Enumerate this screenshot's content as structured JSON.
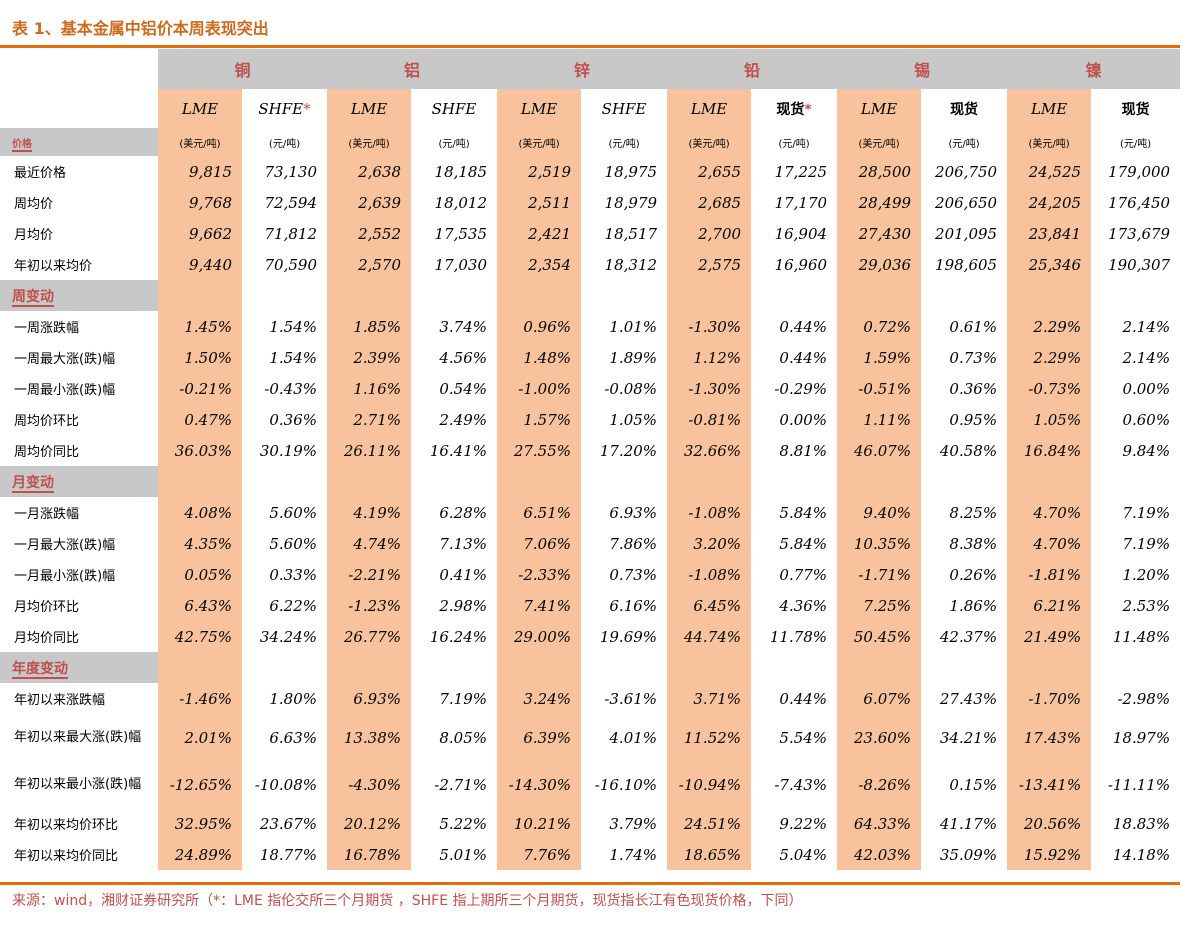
{
  "title": "表 1、基本金属中铝价本周表现突出",
  "source": "来源：wind，湘财证券研究所（*：LME 指伦交所三个月期货 ，SHFE 指上期所三个月期货，现货指长江有色现货价格，下同）",
  "colors": {
    "accent": "#e36c09",
    "header_gray": "#c8c8c8",
    "lme_orange": "#f8c29c",
    "label_red": "#c0504d"
  },
  "metals": [
    "铜",
    "铝",
    "锌",
    "铅",
    "锡",
    "镍"
  ],
  "subheaders": [
    {
      "label": "LME",
      "star": ""
    },
    {
      "label": "SHFE",
      "star": "*"
    },
    {
      "label": "LME",
      "star": ""
    },
    {
      "label": "SHFE",
      "star": ""
    },
    {
      "label": "LME",
      "star": ""
    },
    {
      "label": "SHFE",
      "star": ""
    },
    {
      "label": "LME",
      "star": ""
    },
    {
      "label": "现货",
      "star": "*"
    },
    {
      "label": "LME",
      "star": ""
    },
    {
      "label": "现货",
      "star": ""
    },
    {
      "label": "LME",
      "star": ""
    },
    {
      "label": "现货",
      "star": ""
    }
  ],
  "units": [
    "(美元/吨)",
    "(元/吨)",
    "(美元/吨)",
    "(元/吨)",
    "(美元/吨)",
    "(元/吨)",
    "(美元/吨)",
    "(元/吨)",
    "(美元/吨)",
    "(元/吨)",
    "(美元/吨)",
    "(元/吨)"
  ],
  "sections": [
    {
      "name": "价格",
      "rows": [
        {
          "label": "最近价格",
          "values": [
            "9,815",
            "73,130",
            "2,638",
            "18,185",
            "2,519",
            "18,975",
            "2,655",
            "17,225",
            "28,500",
            "206,750",
            "24,525",
            "179,000"
          ]
        },
        {
          "label": "周均价",
          "values": [
            "9,768",
            "72,594",
            "2,639",
            "18,012",
            "2,511",
            "18,979",
            "2,685",
            "17,170",
            "28,499",
            "206,650",
            "24,205",
            "176,450"
          ]
        },
        {
          "label": "月均价",
          "values": [
            "9,662",
            "71,812",
            "2,552",
            "17,535",
            "2,421",
            "18,517",
            "2,700",
            "16,904",
            "27,430",
            "201,095",
            "23,841",
            "173,679"
          ]
        },
        {
          "label": "年初以来均价",
          "values": [
            "9,440",
            "70,590",
            "2,570",
            "17,030",
            "2,354",
            "18,312",
            "2,575",
            "16,960",
            "29,036",
            "198,605",
            "25,346",
            "190,307"
          ]
        }
      ]
    },
    {
      "name": "周变动",
      "rows": [
        {
          "label": "一周涨跌幅",
          "values": [
            "1.45%",
            "1.54%",
            "1.85%",
            "3.74%",
            "0.96%",
            "1.01%",
            "-1.30%",
            "0.44%",
            "0.72%",
            "0.61%",
            "2.29%",
            "2.14%"
          ]
        },
        {
          "label": "一周最大涨(跌)幅",
          "values": [
            "1.50%",
            "1.54%",
            "2.39%",
            "4.56%",
            "1.48%",
            "1.89%",
            "1.12%",
            "0.44%",
            "1.59%",
            "0.73%",
            "2.29%",
            "2.14%"
          ]
        },
        {
          "label": "一周最小涨(跌)幅",
          "values": [
            "-0.21%",
            "-0.43%",
            "1.16%",
            "0.54%",
            "-1.00%",
            "-0.08%",
            "-1.30%",
            "-0.29%",
            "-0.51%",
            "0.36%",
            "-0.73%",
            "0.00%"
          ]
        },
        {
          "label": "周均价环比",
          "values": [
            "0.47%",
            "0.36%",
            "2.71%",
            "2.49%",
            "1.57%",
            "1.05%",
            "-0.81%",
            "0.00%",
            "1.11%",
            "0.95%",
            "1.05%",
            "0.60%"
          ]
        },
        {
          "label": "周均价同比",
          "values": [
            "36.03%",
            "30.19%",
            "26.11%",
            "16.41%",
            "27.55%",
            "17.20%",
            "32.66%",
            "8.81%",
            "46.07%",
            "40.58%",
            "16.84%",
            "9.84%"
          ]
        }
      ]
    },
    {
      "name": "月变动",
      "rows": [
        {
          "label": "一月涨跌幅",
          "values": [
            "4.08%",
            "5.60%",
            "4.19%",
            "6.28%",
            "6.51%",
            "6.93%",
            "-1.08%",
            "5.84%",
            "9.40%",
            "8.25%",
            "4.70%",
            "7.19%"
          ]
        },
        {
          "label": "一月最大涨(跌)幅",
          "values": [
            "4.35%",
            "5.60%",
            "4.74%",
            "7.13%",
            "7.06%",
            "7.86%",
            "3.20%",
            "5.84%",
            "10.35%",
            "8.38%",
            "4.70%",
            "7.19%"
          ]
        },
        {
          "label": "一月最小涨(跌)幅",
          "values": [
            "0.05%",
            "0.33%",
            "-2.21%",
            "0.41%",
            "-2.33%",
            "0.73%",
            "-1.08%",
            "0.77%",
            "-1.71%",
            "0.26%",
            "-1.81%",
            "1.20%"
          ]
        },
        {
          "label": "月均价环比",
          "values": [
            "6.43%",
            "6.22%",
            "-1.23%",
            "2.98%",
            "7.41%",
            "6.16%",
            "6.45%",
            "4.36%",
            "7.25%",
            "1.86%",
            "6.21%",
            "2.53%"
          ]
        },
        {
          "label": "月均价同比",
          "values": [
            "42.75%",
            "34.24%",
            "26.77%",
            "16.24%",
            "29.00%",
            "19.69%",
            "44.74%",
            "11.78%",
            "50.45%",
            "42.37%",
            "21.49%",
            "11.48%"
          ]
        }
      ]
    },
    {
      "name": "年度变动",
      "rows": [
        {
          "label": "年初以来涨跌幅",
          "values": [
            "-1.46%",
            "1.80%",
            "6.93%",
            "7.19%",
            "3.24%",
            "-3.61%",
            "3.71%",
            "0.44%",
            "6.07%",
            "27.43%",
            "-1.70%",
            "-2.98%"
          ]
        },
        {
          "label": "年初以来最大涨(跌)幅",
          "tall": true,
          "values": [
            "2.01%",
            "6.63%",
            "13.38%",
            "8.05%",
            "6.39%",
            "4.01%",
            "11.52%",
            "5.54%",
            "23.60%",
            "34.21%",
            "17.43%",
            "18.97%"
          ]
        },
        {
          "label": "年初以来最小涨(跌)幅",
          "tall": true,
          "values": [
            "-12.65%",
            "-10.08%",
            "-4.30%",
            "-2.71%",
            "-14.30%",
            "-16.10%",
            "-10.94%",
            "-7.43%",
            "-8.26%",
            "0.15%",
            "-13.41%",
            "-11.11%"
          ]
        },
        {
          "label": "年初以来均价环比",
          "values": [
            "32.95%",
            "23.67%",
            "20.12%",
            "5.22%",
            "10.21%",
            "3.79%",
            "24.51%",
            "9.22%",
            "64.33%",
            "41.17%",
            "20.56%",
            "18.83%"
          ]
        },
        {
          "label": "年初以来均价同比",
          "values": [
            "24.89%",
            "18.77%",
            "16.78%",
            "5.01%",
            "7.76%",
            "1.74%",
            "18.65%",
            "5.04%",
            "42.03%",
            "35.09%",
            "15.92%",
            "14.18%"
          ]
        }
      ]
    }
  ]
}
